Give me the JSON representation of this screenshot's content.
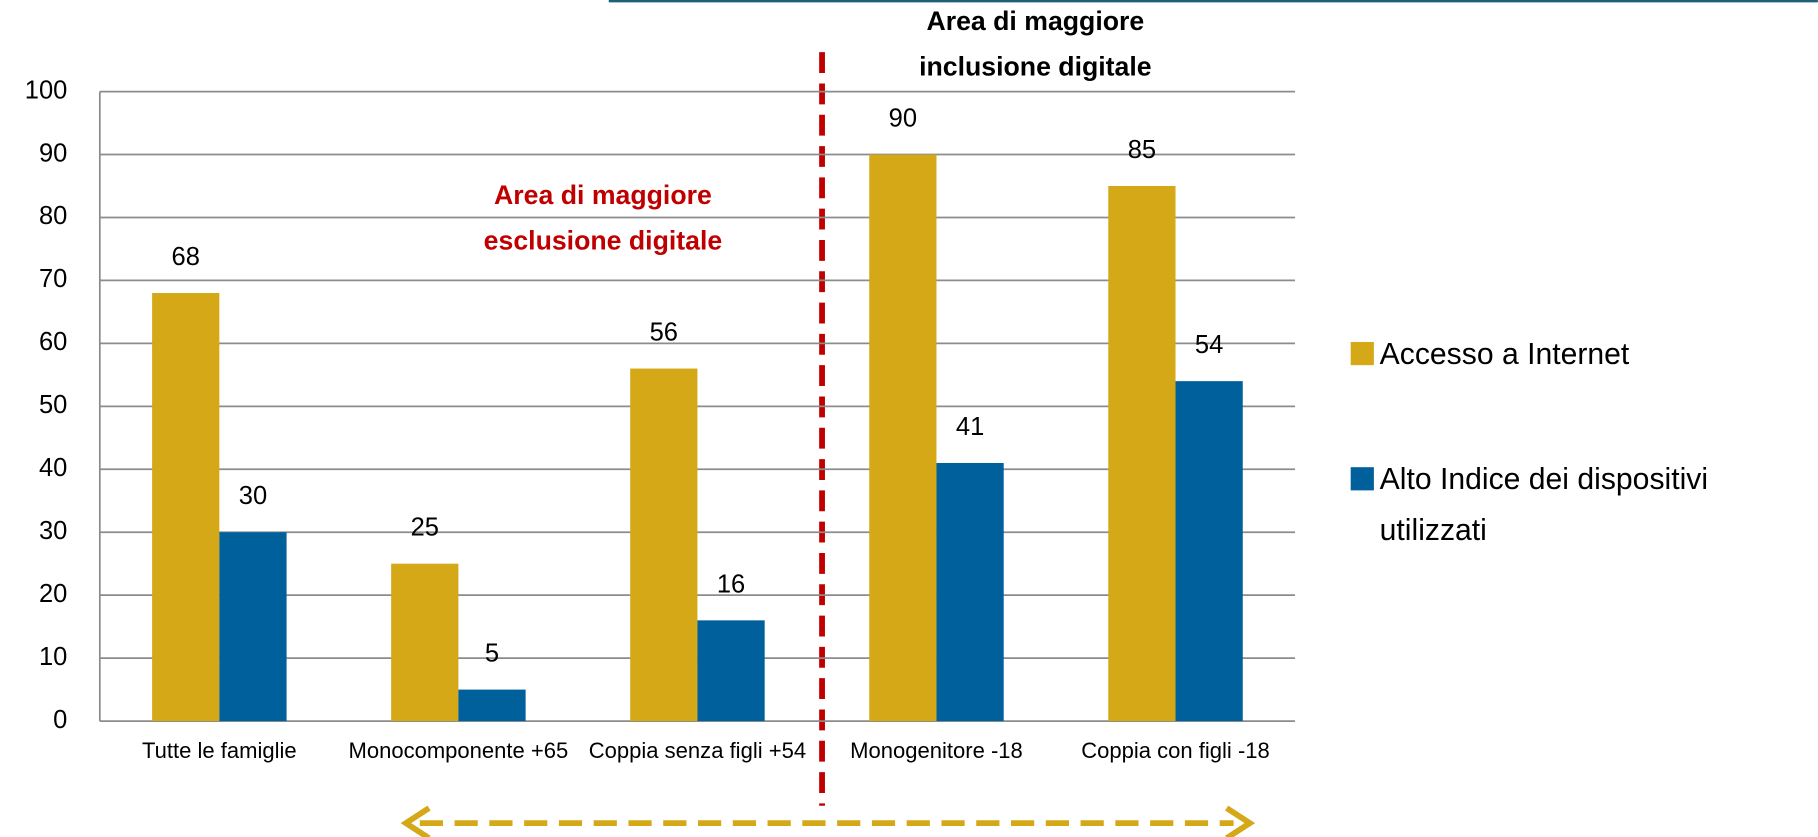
{
  "chart_data": {
    "type": "bar",
    "categories": [
      "Tutte le famiglie",
      "Monocomponente +65",
      "Coppia senza figli +54",
      "Monogenitore -18",
      "Coppia con figli -18"
    ],
    "series": [
      {
        "name": "Accesso a Internet",
        "color": "#d4a817",
        "values": [
          68,
          25,
          56,
          90,
          85
        ]
      },
      {
        "name": "Alto Indice dei dispositivi utilizzati",
        "color": "#00609c",
        "values": [
          30,
          5,
          16,
          41,
          54
        ]
      }
    ],
    "ylim": [
      0,
      100
    ],
    "yticks": [
      0,
      10,
      20,
      30,
      40,
      50,
      60,
      70,
      80,
      90,
      100
    ],
    "grid": true,
    "annotations": [
      {
        "lines": [
          "Area di maggiore",
          "esclusione digitale"
        ],
        "color": "#c00000"
      },
      {
        "lines": [
          "Area di maggiore",
          "inclusione digitale"
        ],
        "color": "#000000"
      }
    ]
  }
}
